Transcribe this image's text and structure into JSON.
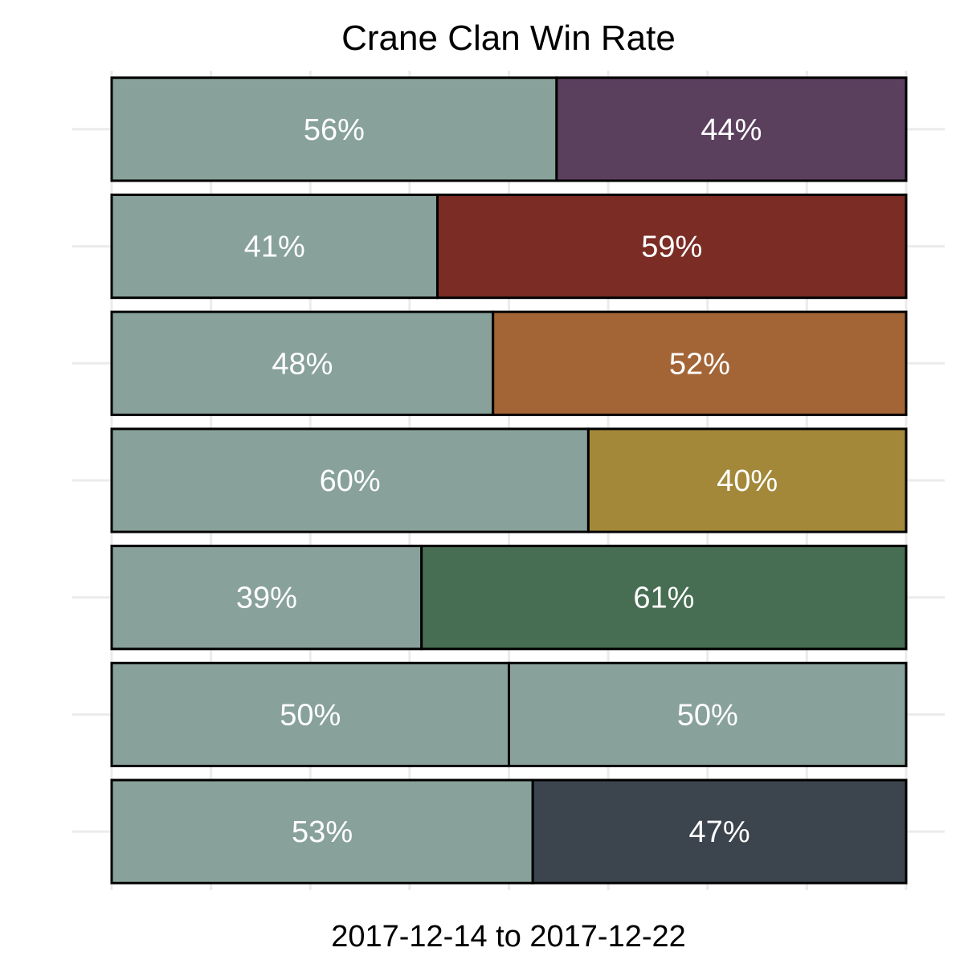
{
  "chart_data": {
    "type": "bar",
    "orientation": "horizontal",
    "stacked": true,
    "title": "Crane Clan Win Rate",
    "xlabel": "2017-12-14 to 2017-12-22",
    "ylabel": "",
    "xlim": [
      0,
      100
    ],
    "grid": true,
    "legend": "none",
    "base_color": "#88a19b",
    "rows": [
      {
        "values": [
          56,
          44
        ],
        "labels": [
          "56%",
          "44%"
        ],
        "colors": [
          "#88a19b",
          "#5b405e"
        ]
      },
      {
        "values": [
          41,
          59
        ],
        "labels": [
          "41%",
          "59%"
        ],
        "colors": [
          "#88a19b",
          "#7a2c25"
        ]
      },
      {
        "values": [
          48,
          52
        ],
        "labels": [
          "48%",
          "52%"
        ],
        "colors": [
          "#88a19b",
          "#a36536"
        ]
      },
      {
        "values": [
          60,
          40
        ],
        "labels": [
          "60%",
          "40%"
        ],
        "colors": [
          "#88a19b",
          "#a38839"
        ]
      },
      {
        "values": [
          39,
          61
        ],
        "labels": [
          "39%",
          "61%"
        ],
        "colors": [
          "#88a19b",
          "#476d52"
        ]
      },
      {
        "values": [
          50,
          50
        ],
        "labels": [
          "50%",
          "50%"
        ],
        "colors": [
          "#88a19b",
          "#88a19b"
        ]
      },
      {
        "values": [
          53,
          47
        ],
        "labels": [
          "53%",
          "47%"
        ],
        "colors": [
          "#88a19b",
          "#3c444d"
        ]
      }
    ]
  }
}
